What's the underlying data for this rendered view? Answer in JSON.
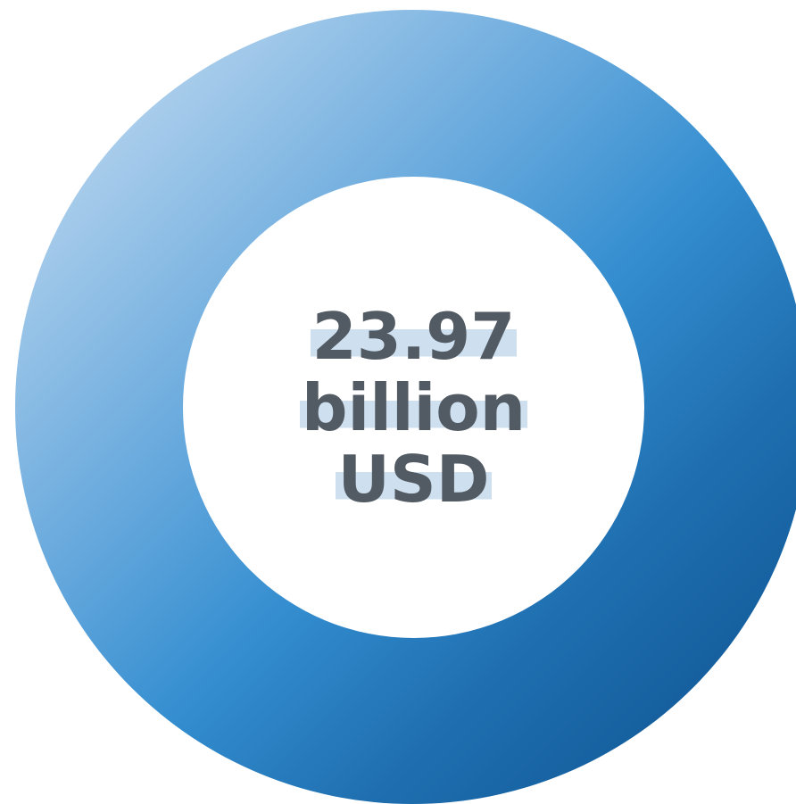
{
  "metric": {
    "value": "23.97",
    "unit_line1": "billion",
    "unit_line2": "USD"
  },
  "colors": {
    "ring_light": "#cfe2f3",
    "ring_mid": "#338dcf",
    "ring_dark": "#0b4f8c",
    "text": "#525a63",
    "highlight": "#b4cee6"
  }
}
